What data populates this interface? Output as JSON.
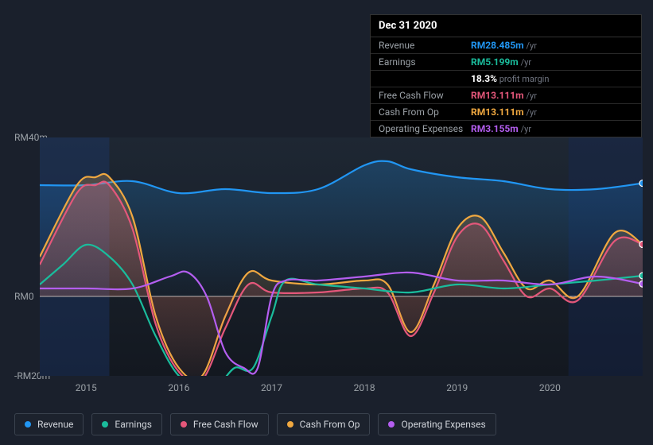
{
  "tooltip": {
    "date": "Dec 31 2020",
    "rows": [
      {
        "label": "Revenue",
        "value": "RM28.485m",
        "unit": "/yr",
        "color": "#2196f3"
      },
      {
        "label": "Earnings",
        "value": "RM5.199m",
        "unit": "/yr",
        "color": "#1abc9c",
        "note_pct": "18.3%",
        "note_text": "profit margin"
      },
      {
        "label": "Free Cash Flow",
        "value": "RM13.111m",
        "unit": "/yr",
        "color": "#e4577a"
      },
      {
        "label": "Cash From Op",
        "value": "RM13.111m",
        "unit": "/yr",
        "color": "#f0a840"
      },
      {
        "label": "Operating Expenses",
        "value": "RM3.155m",
        "unit": "/yr",
        "color": "#b45ef0"
      }
    ]
  },
  "chart": {
    "type": "line",
    "background": "#1a202c",
    "plot_bg_gradient": [
      "#1e2733",
      "#131820"
    ],
    "ylim": [
      -20,
      40
    ],
    "yticks": [
      {
        "v": 40,
        "label": "RM40m"
      },
      {
        "v": 0,
        "label": "RM0"
      },
      {
        "v": -20,
        "label": "-RM20m"
      }
    ],
    "x_years": [
      2015,
      2016,
      2017,
      2018,
      2019,
      2020
    ],
    "x_domain": [
      2014.5,
      2021.0
    ],
    "highlight_bands": [
      {
        "from": 2014.5,
        "to": 2015.25
      },
      {
        "from": 2020.2,
        "to": 2021.0
      }
    ],
    "series": [
      {
        "id": "revenue",
        "label": "Revenue",
        "color": "#2196f3",
        "fill": true,
        "width": 2.2,
        "order": 1,
        "points": [
          [
            2014.5,
            28
          ],
          [
            2015,
            28
          ],
          [
            2015.5,
            29
          ],
          [
            2016,
            26
          ],
          [
            2016.5,
            27
          ],
          [
            2017,
            26
          ],
          [
            2017.5,
            27
          ],
          [
            2018,
            33
          ],
          [
            2018.25,
            34
          ],
          [
            2018.5,
            32
          ],
          [
            2019,
            30
          ],
          [
            2019.5,
            29
          ],
          [
            2020,
            27
          ],
          [
            2020.5,
            27
          ],
          [
            2021.0,
            28.485
          ]
        ]
      },
      {
        "id": "cash_from_op",
        "label": "Cash From Op",
        "color": "#f0a840",
        "fill": true,
        "width": 2.2,
        "order": 2,
        "points": [
          [
            2014.5,
            10
          ],
          [
            2014.9,
            28
          ],
          [
            2015.1,
            30
          ],
          [
            2015.25,
            30
          ],
          [
            2015.5,
            20
          ],
          [
            2015.75,
            -5
          ],
          [
            2016,
            -18
          ],
          [
            2016.25,
            -20
          ],
          [
            2016.5,
            -5
          ],
          [
            2016.75,
            6
          ],
          [
            2017,
            4
          ],
          [
            2017.5,
            3
          ],
          [
            2018,
            4
          ],
          [
            2018.25,
            3
          ],
          [
            2018.5,
            -9
          ],
          [
            2018.75,
            3
          ],
          [
            2019,
            17
          ],
          [
            2019.25,
            20
          ],
          [
            2019.5,
            11
          ],
          [
            2019.75,
            2
          ],
          [
            2020,
            4
          ],
          [
            2020.3,
            0
          ],
          [
            2020.7,
            16
          ],
          [
            2021.0,
            13.111
          ]
        ]
      },
      {
        "id": "fcf",
        "label": "Free Cash Flow",
        "color": "#e4577a",
        "fill": true,
        "width": 2.0,
        "order": 3,
        "points": [
          [
            2014.5,
            8
          ],
          [
            2014.9,
            26
          ],
          [
            2015.1,
            28
          ],
          [
            2015.25,
            28
          ],
          [
            2015.5,
            17
          ],
          [
            2015.75,
            -7
          ],
          [
            2016,
            -19
          ],
          [
            2016.25,
            -21
          ],
          [
            2016.5,
            -8
          ],
          [
            2016.75,
            3
          ],
          [
            2017,
            1
          ],
          [
            2017.5,
            1
          ],
          [
            2018,
            2
          ],
          [
            2018.25,
            1
          ],
          [
            2018.5,
            -10
          ],
          [
            2018.75,
            1
          ],
          [
            2019,
            15
          ],
          [
            2019.25,
            18
          ],
          [
            2019.5,
            9
          ],
          [
            2019.75,
            0
          ],
          [
            2020,
            2
          ],
          [
            2020.3,
            -1
          ],
          [
            2020.7,
            14
          ],
          [
            2021.0,
            13.111
          ]
        ]
      },
      {
        "id": "earnings",
        "label": "Earnings",
        "color": "#1abc9c",
        "fill": false,
        "width": 2.4,
        "order": 4,
        "points": [
          [
            2014.5,
            3
          ],
          [
            2014.75,
            8
          ],
          [
            2015,
            13
          ],
          [
            2015.25,
            10
          ],
          [
            2015.5,
            3
          ],
          [
            2015.75,
            -10
          ],
          [
            2016,
            -20
          ],
          [
            2016.25,
            -22
          ],
          [
            2016.4,
            -23
          ],
          [
            2016.6,
            -18
          ],
          [
            2016.8,
            -18
          ],
          [
            2017,
            -5
          ],
          [
            2017.15,
            4
          ],
          [
            2017.5,
            3
          ],
          [
            2018,
            2
          ],
          [
            2018.5,
            1
          ],
          [
            2019,
            3
          ],
          [
            2019.5,
            2
          ],
          [
            2020,
            3
          ],
          [
            2020.5,
            4
          ],
          [
            2021.0,
            5.199
          ]
        ]
      },
      {
        "id": "opex",
        "label": "Operating Expenses",
        "color": "#b45ef0",
        "fill": false,
        "width": 2.4,
        "order": 5,
        "points": [
          [
            2014.5,
            2
          ],
          [
            2015,
            2
          ],
          [
            2015.5,
            2
          ],
          [
            2015.9,
            5
          ],
          [
            2016.1,
            6
          ],
          [
            2016.3,
            0
          ],
          [
            2016.5,
            -14
          ],
          [
            2016.7,
            -18
          ],
          [
            2016.85,
            -18
          ],
          [
            2017.0,
            0
          ],
          [
            2017.15,
            4
          ],
          [
            2017.5,
            4
          ],
          [
            2018,
            5
          ],
          [
            2018.5,
            6
          ],
          [
            2019,
            4
          ],
          [
            2019.5,
            4
          ],
          [
            2020,
            3
          ],
          [
            2020.5,
            5
          ],
          [
            2021.0,
            3.155
          ]
        ]
      }
    ],
    "legend": [
      {
        "id": "revenue",
        "label": "Revenue",
        "color": "#2196f3"
      },
      {
        "id": "earnings",
        "label": "Earnings",
        "color": "#1abc9c"
      },
      {
        "id": "fcf",
        "label": "Free Cash Flow",
        "color": "#e4577a"
      },
      {
        "id": "cash_from_op",
        "label": "Cash From Op",
        "color": "#f0a840"
      },
      {
        "id": "opex",
        "label": "Operating Expenses",
        "color": "#b45ef0"
      }
    ]
  }
}
